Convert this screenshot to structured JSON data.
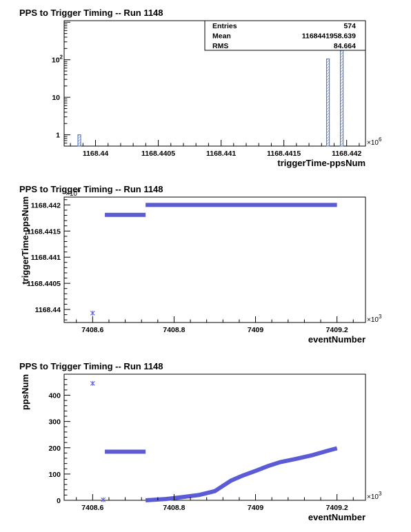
{
  "chart_data": [
    {
      "type": "histogram",
      "title": "PPS to Trigger Timing -- Run 1148",
      "xlabel": "triggerTime-ppsNum",
      "ylabel": "",
      "x_exponent_label": "×10",
      "x_exponent_power": "6",
      "xlim": [
        1168.43975,
        1168.44215
      ],
      "xticks": [
        {
          "value": 1168.44,
          "label": "1168.44"
        },
        {
          "value": 1168.4405,
          "label": "1168.4405"
        },
        {
          "value": 1168.441,
          "label": "1168.441"
        },
        {
          "value": 1168.4415,
          "label": "1168.4415"
        },
        {
          "value": 1168.442,
          "label": "1168.442"
        }
      ],
      "ylog": true,
      "ylim": [
        0.5,
        1100
      ],
      "yticks": [
        {
          "value": 1,
          "label": "1"
        },
        {
          "value": 10,
          "label": "10"
        },
        {
          "value": 100,
          "label": "10",
          "sup": "2"
        }
      ],
      "bin_width": 2e-05,
      "bins": [
        {
          "x": 1168.43987,
          "count": 1
        },
        {
          "x": 1168.44185,
          "count": 105
        },
        {
          "x": 1168.44196,
          "count": 468
        }
      ],
      "stats": [
        {
          "name": "Entries",
          "value": "574"
        },
        {
          "name": "Mean",
          "value": "1168441958.639"
        },
        {
          "name": "RMS",
          "value": "84.664"
        }
      ],
      "color": "#5b7bc8"
    },
    {
      "type": "scatter",
      "title": "PPS to Trigger Timing -- Run 1148",
      "xlabel": "eventNumber",
      "ylabel": "triggerTime-ppsNum",
      "x_exponent_label": "×10",
      "x_exponent_power": "3",
      "y_exponent_label": "×10",
      "y_exponent_power": "6",
      "xlim": [
        7408.53,
        7409.27
      ],
      "ylim": [
        1168.43975,
        1168.44215
      ],
      "xticks": [
        {
          "value": 7408.6,
          "label": "7408.6"
        },
        {
          "value": 7408.8,
          "label": "7408.8"
        },
        {
          "value": 7409,
          "label": "7409"
        },
        {
          "value": 7409.2,
          "label": "7409.2"
        }
      ],
      "yticks": [
        {
          "value": 1168.44,
          "label": "1168.44"
        },
        {
          "value": 1168.4405,
          "label": "1168.4405"
        },
        {
          "value": 1168.441,
          "label": "1168.441"
        },
        {
          "value": 1168.4415,
          "label": "1168.4415"
        },
        {
          "value": 1168.442,
          "label": "1168.442"
        }
      ],
      "points": [
        [
          7408.6,
          1168.43993
        ]
      ],
      "segments": [
        {
          "x0": 7408.63,
          "x1": 7408.73,
          "y": 1168.44181
        },
        {
          "x0": 7408.73,
          "x1": 7409.2,
          "y": 1168.442
        }
      ],
      "color": "#5b5bd6"
    },
    {
      "type": "scatter",
      "title": "PPS to Trigger Timing -- Run 1148",
      "xlabel": "eventNumber",
      "ylabel": "ppsNum",
      "x_exponent_label": "×10",
      "x_exponent_power": "3",
      "xlim": [
        7408.53,
        7409.27
      ],
      "ylim": [
        0,
        480
      ],
      "xticks": [
        {
          "value": 7408.6,
          "label": "7408.6"
        },
        {
          "value": 7408.8,
          "label": "7408.8"
        },
        {
          "value": 7409,
          "label": "7409"
        },
        {
          "value": 7409.2,
          "label": "7409.2"
        }
      ],
      "yticks": [
        {
          "value": 0,
          "label": "0"
        },
        {
          "value": 100,
          "label": "100"
        },
        {
          "value": 200,
          "label": "200"
        },
        {
          "value": 300,
          "label": "300"
        },
        {
          "value": 400,
          "label": "400"
        }
      ],
      "points": [
        [
          7408.6,
          445
        ],
        [
          7408.626,
          2
        ]
      ],
      "segments": [
        {
          "x0": 7408.63,
          "x1": 7408.73,
          "y": 185
        }
      ],
      "curve": [
        [
          7408.73,
          0
        ],
        [
          7408.78,
          5
        ],
        [
          7408.82,
          12
        ],
        [
          7408.86,
          20
        ],
        [
          7408.9,
          35
        ],
        [
          7408.92,
          55
        ],
        [
          7408.94,
          75
        ],
        [
          7408.97,
          95
        ],
        [
          7409.0,
          112
        ],
        [
          7409.03,
          130
        ],
        [
          7409.06,
          145
        ],
        [
          7409.1,
          158
        ],
        [
          7409.14,
          172
        ],
        [
          7409.18,
          190
        ],
        [
          7409.2,
          198
        ]
      ],
      "color": "#5b5bd6"
    }
  ]
}
